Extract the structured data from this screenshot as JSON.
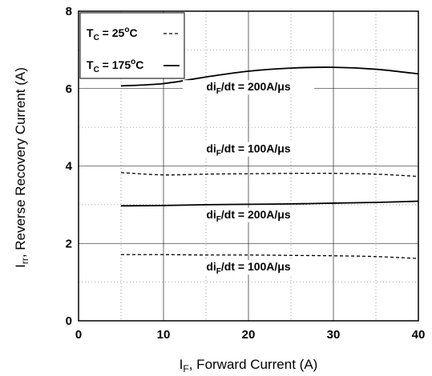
{
  "chart_data": {
    "type": "line",
    "xlabel": "I",
    "xlabel_sub": "F",
    "xlabel_rest": ", Forward Current (A)",
    "ylabel": "I",
    "ylabel_sub": "rr",
    "ylabel_rest": ", Reverse Recovery Current (A)",
    "xlim": [
      0,
      40
    ],
    "ylim": [
      0,
      8
    ],
    "x_ticks": [
      "0",
      "10",
      "20",
      "30",
      "40"
    ],
    "y_ticks": [
      "0",
      "2",
      "4",
      "6",
      "8"
    ],
    "grid": true,
    "legend": {
      "placement": "top-left",
      "entries": [
        {
          "prefix": "T",
          "sub": "C",
          "value": " = 25",
          "sup": "o",
          "unit": "C",
          "style": "dashed"
        },
        {
          "prefix": "T",
          "sub": "C",
          "value": " = 175",
          "sup": "o",
          "unit": "C",
          "style": "solid"
        }
      ]
    },
    "series": [
      {
        "style": "solid",
        "x": [
          5,
          10,
          15,
          20,
          25,
          30,
          35,
          40
        ],
        "y": [
          6.07,
          6.13,
          6.3,
          6.45,
          6.53,
          6.55,
          6.5,
          6.38
        ]
      },
      {
        "style": "dashed",
        "x": [
          5,
          10,
          15,
          20,
          25,
          30,
          35,
          40
        ],
        "y": [
          3.83,
          3.77,
          3.79,
          3.8,
          3.81,
          3.81,
          3.79,
          3.73
        ]
      },
      {
        "style": "solid",
        "x": [
          5,
          10,
          15,
          20,
          25,
          30,
          35,
          40
        ],
        "y": [
          2.97,
          2.98,
          3.0,
          3.01,
          3.02,
          3.04,
          3.06,
          3.09
        ]
      },
      {
        "style": "dashed",
        "x": [
          5,
          10,
          15,
          20,
          25,
          30,
          35,
          40
        ],
        "y": [
          1.71,
          1.71,
          1.7,
          1.7,
          1.69,
          1.68,
          1.66,
          1.61
        ]
      }
    ],
    "annotations": [
      {
        "pre": "di",
        "sub": "F",
        "post": "/dt = 200A/μs",
        "x": 20,
        "y": 5.95
      },
      {
        "pre": "di",
        "sub": "F",
        "post": "/dt = 100A/μs",
        "x": 20,
        "y": 4.35
      },
      {
        "pre": "di",
        "sub": "F",
        "post": "/dt = 200A/μs",
        "x": 20,
        "y": 2.65
      },
      {
        "pre": "di",
        "sub": "F",
        "post": "/dt = 100A/μs",
        "x": 20,
        "y": 1.3
      }
    ]
  }
}
